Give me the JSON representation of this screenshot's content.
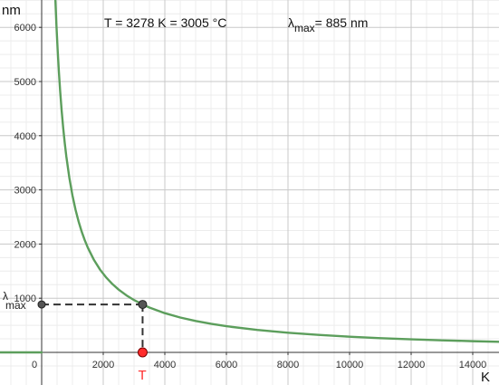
{
  "chart_data": {
    "type": "line",
    "title": "",
    "xlabel": "K",
    "ylabel": "nm",
    "xlim": [
      -1350,
      14950
    ],
    "ylim": [
      -450,
      6650
    ],
    "x_ticks": [
      0,
      2000,
      4000,
      6000,
      8000,
      10000,
      12000,
      14000
    ],
    "y_ticks": [
      1000,
      2000,
      3000,
      4000,
      5000,
      6000
    ],
    "x_tick_labels": [
      "0",
      "2000",
      "4000",
      "6000",
      "8000",
      "10000",
      "12000",
      "14000"
    ],
    "y_tick_labels": [
      "1000",
      "2000",
      "3000",
      "4000",
      "5000",
      "6000"
    ],
    "grid": true,
    "series": [
      {
        "name": "",
        "x": [
          440,
          480,
          520,
          560,
          600,
          650,
          700,
          750,
          800,
          900,
          1000,
          1100,
          1200,
          1300,
          1400,
          1500,
          1700,
          1900,
          2100,
          2300,
          2500,
          2750,
          3000,
          3278,
          3500,
          4000,
          4500,
          5000,
          5500,
          6000,
          7000,
          8000,
          9000,
          10000,
          11000,
          12000,
          13000,
          14000,
          14950
        ],
        "y": [
          6586,
          6037,
          5573,
          5175,
          4830,
          4458,
          4140,
          3864,
          3622,
          3220,
          2898,
          2634,
          2415,
          2229,
          2070,
          1932,
          1705,
          1525,
          1380,
          1260,
          1159,
          1054,
          966,
          885,
          828,
          724,
          644,
          580,
          527,
          483,
          414,
          362,
          322,
          290,
          263,
          241,
          223,
          207,
          194
        ],
        "color": "#5c9e5c"
      },
      {
        "name": "",
        "x": [
          -1350,
          0
        ],
        "y": [
          0,
          0
        ],
        "color": "#5c9e5c"
      }
    ],
    "point_T": {
      "x": 3278,
      "y": 0,
      "label": "T",
      "color": "#ff2b2b"
    },
    "point_curve": {
      "x": 3278,
      "y": 885
    },
    "point_lambda": {
      "x": 0,
      "y": 885,
      "label_main": "λ",
      "label_sub": "max"
    },
    "info": {
      "temperature_text": "T = 3278 K = 3005 °C",
      "lambda_symbol": "λ",
      "lambda_sub": "max",
      "lambda_value_text": "= 885 nm"
    }
  }
}
